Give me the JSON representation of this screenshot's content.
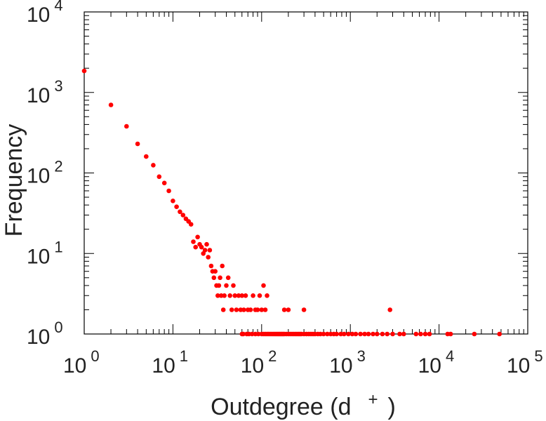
{
  "chart_data": {
    "type": "scatter",
    "title": "",
    "xlabel": "Outdegree (d",
    "xlabel_superscript": "+",
    "xlabel_close": ")",
    "ylabel": "Frequency",
    "xscale": "log",
    "yscale": "log",
    "xlim": [
      1,
      100000
    ],
    "ylim": [
      1,
      10000
    ],
    "grid": false,
    "legend": "none",
    "marker_color": "#ff0000",
    "x_ticks": [
      {
        "base": "10",
        "exp": "0"
      },
      {
        "base": "10",
        "exp": "1"
      },
      {
        "base": "10",
        "exp": "2"
      },
      {
        "base": "10",
        "exp": "3"
      },
      {
        "base": "10",
        "exp": "4"
      },
      {
        "base": "10",
        "exp": "5"
      }
    ],
    "y_ticks": [
      {
        "base": "10",
        "exp": "0"
      },
      {
        "base": "10",
        "exp": "1"
      },
      {
        "base": "10",
        "exp": "2"
      },
      {
        "base": "10",
        "exp": "3"
      },
      {
        "base": "10",
        "exp": "4"
      }
    ],
    "points": [
      [
        1,
        1850
      ],
      [
        2,
        700
      ],
      [
        3,
        380
      ],
      [
        4,
        230
      ],
      [
        5,
        160
      ],
      [
        6,
        125
      ],
      [
        7,
        90
      ],
      [
        8,
        75
      ],
      [
        9,
        60
      ],
      [
        10,
        45
      ],
      [
        11,
        38
      ],
      [
        12,
        33
      ],
      [
        13,
        30
      ],
      [
        14,
        27
      ],
      [
        15,
        25
      ],
      [
        16,
        23
      ],
      [
        17,
        14
      ],
      [
        18,
        12
      ],
      [
        19,
        16
      ],
      [
        20,
        13
      ],
      [
        21,
        12
      ],
      [
        22,
        10
      ],
      [
        23,
        11
      ],
      [
        24,
        13
      ],
      [
        25,
        9
      ],
      [
        26,
        11
      ],
      [
        27,
        7
      ],
      [
        28,
        6
      ],
      [
        29,
        5
      ],
      [
        30,
        6
      ],
      [
        31,
        4
      ],
      [
        32,
        3
      ],
      [
        33,
        4
      ],
      [
        34,
        5
      ],
      [
        35,
        3
      ],
      [
        36,
        7
      ],
      [
        37,
        2
      ],
      [
        38,
        3
      ],
      [
        40,
        4
      ],
      [
        42,
        5
      ],
      [
        44,
        3
      ],
      [
        46,
        2
      ],
      [
        48,
        4
      ],
      [
        50,
        3
      ],
      [
        52,
        2
      ],
      [
        55,
        3
      ],
      [
        58,
        2
      ],
      [
        60,
        3
      ],
      [
        63,
        2
      ],
      [
        66,
        3
      ],
      [
        70,
        2
      ],
      [
        75,
        2
      ],
      [
        80,
        3
      ],
      [
        85,
        2
      ],
      [
        90,
        2
      ],
      [
        95,
        3
      ],
      [
        100,
        2
      ],
      [
        105,
        4
      ],
      [
        110,
        2
      ],
      [
        115,
        3
      ],
      [
        180,
        2
      ],
      [
        200,
        2
      ],
      [
        300,
        2
      ],
      [
        2800,
        2
      ],
      [
        60,
        1
      ],
      [
        62,
        1
      ],
      [
        68,
        1
      ],
      [
        72,
        1
      ],
      [
        78,
        1
      ],
      [
        85,
        1
      ],
      [
        92,
        1
      ],
      [
        100,
        1
      ],
      [
        105,
        1
      ],
      [
        110,
        1
      ],
      [
        115,
        1
      ],
      [
        120,
        1
      ],
      [
        125,
        1
      ],
      [
        130,
        1
      ],
      [
        135,
        1
      ],
      [
        140,
        1
      ],
      [
        145,
        1
      ],
      [
        150,
        1
      ],
      [
        155,
        1
      ],
      [
        160,
        1
      ],
      [
        165,
        1
      ],
      [
        170,
        1
      ],
      [
        175,
        1
      ],
      [
        180,
        1
      ],
      [
        190,
        1
      ],
      [
        200,
        1
      ],
      [
        210,
        1
      ],
      [
        220,
        1
      ],
      [
        230,
        1
      ],
      [
        240,
        1
      ],
      [
        250,
        1
      ],
      [
        260,
        1
      ],
      [
        270,
        1
      ],
      [
        280,
        1
      ],
      [
        300,
        1
      ],
      [
        320,
        1
      ],
      [
        340,
        1
      ],
      [
        360,
        1
      ],
      [
        380,
        1
      ],
      [
        400,
        1
      ],
      [
        430,
        1
      ],
      [
        460,
        1
      ],
      [
        500,
        1
      ],
      [
        550,
        1
      ],
      [
        600,
        1
      ],
      [
        650,
        1
      ],
      [
        700,
        1
      ],
      [
        780,
        1
      ],
      [
        850,
        1
      ],
      [
        950,
        1
      ],
      [
        1050,
        1
      ],
      [
        1150,
        1
      ],
      [
        1300,
        1
      ],
      [
        1450,
        1
      ],
      [
        1600,
        1
      ],
      [
        1800,
        1
      ],
      [
        2000,
        1
      ],
      [
        2300,
        1
      ],
      [
        2600,
        1
      ],
      [
        3000,
        1
      ],
      [
        3600,
        1
      ],
      [
        4000,
        1
      ],
      [
        5500,
        1
      ],
      [
        6200,
        1
      ],
      [
        7000,
        1
      ],
      [
        7800,
        1
      ],
      [
        12500,
        1
      ],
      [
        13500,
        1
      ],
      [
        25000,
        1
      ],
      [
        48000,
        1
      ]
    ]
  }
}
